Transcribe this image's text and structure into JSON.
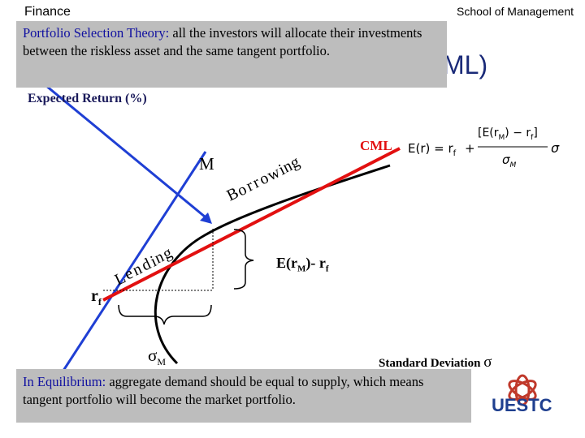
{
  "header": {
    "left": "Finance",
    "right": "School of Management"
  },
  "title_tail": "ML)",
  "top_note": {
    "highlight": "Portfolio Selection Theory:",
    "body": " all the investors will allocate their investments between the riskless asset and the same tangent portfolio."
  },
  "bottom_note": {
    "highlight": "In Equilibrium:",
    "body": " aggregate demand should be equal to supply, which means tangent portfolio will become the market portfolio."
  },
  "diagram": {
    "y_axis_label": "Expected Return (%)",
    "x_axis_label": "Standard Deviation",
    "x_axis_symbol": "σ",
    "point_label": "M",
    "rf_label": "r",
    "rf_sub": "f",
    "sigma_m_symbol": "σ",
    "sigma_m_sub": "M",
    "premium_prefix": "E(r",
    "premium_sub1": "M",
    "premium_mid": ")- r",
    "premium_sub2": "f",
    "line_label": "CML",
    "lending": [
      "L",
      "e",
      "n",
      "d",
      "i",
      "n",
      "g"
    ],
    "borrowing": [
      "B",
      "o",
      "r",
      "r",
      "o",
      "w",
      "i",
      "n",
      "g"
    ],
    "formula": {
      "lhs": "E(r) = r",
      "lhs_sub": "f",
      "plus": "+",
      "numerator": "[E(r",
      "num_sub1": "M",
      "num_mid": ") − r",
      "num_sub2": "f",
      "num_end": "]",
      "denominator": "σ",
      "den_sub": "M",
      "trailing": "σ"
    },
    "colors": {
      "cml": "#e21010",
      "line": "#1f3fd4",
      "curve": "#000000"
    }
  },
  "logo_text": "UESTC"
}
